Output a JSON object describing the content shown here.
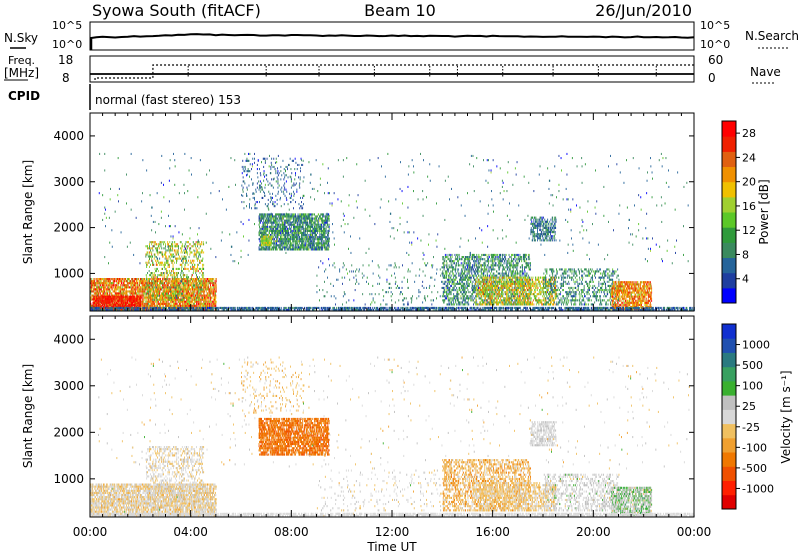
{
  "header": {
    "station": "Syowa South (fitACF)",
    "beam": "Beam 10",
    "date": "26/Jun/2010"
  },
  "top_panels": {
    "nsky_label": "N.Sky",
    "nsearch_label": "N.Search",
    "nsky_ticks": [
      "10^5",
      "10^0"
    ],
    "nsearch_ticks": [
      "10^5",
      "10^0"
    ],
    "freq_label": "Freq.",
    "freq_unit": "[MHz]",
    "freq_ticks": [
      "18",
      "8"
    ],
    "nave_label": "Nave",
    "nave_ticks": [
      "60",
      "0"
    ],
    "cpid_label": "CPID",
    "cpid_text": "normal (fast stereo) 153"
  },
  "time_axis": {
    "label": "Time UT",
    "ticks": [
      "00:00",
      "04:00",
      "08:00",
      "12:00",
      "16:00",
      "20:00",
      "00:00"
    ]
  },
  "chart_data": [
    {
      "type": "heatmap",
      "name": "power-panel",
      "ylabel": "Slant Range [km]",
      "yticks": [
        "1000",
        "2000",
        "3000",
        "4000"
      ],
      "ylim": [
        180,
        4500
      ],
      "xlim_hours": [
        0,
        24
      ],
      "colorbar": {
        "label": "Power [dB]",
        "ticks": [
          "4",
          "8",
          "12",
          "16",
          "20",
          "24",
          "28"
        ],
        "range": [
          0,
          30
        ],
        "colors": [
          "#0000ff",
          "#1e3ea0",
          "#25649a",
          "#3a8a5e",
          "#2f9a3b",
          "#5cc828",
          "#a0d030",
          "#f0c000",
          "#f09000",
          "#e06010",
          "#f02000",
          "#ff0000"
        ]
      },
      "clusters": [
        {
          "t": [
            0.0,
            5.0
          ],
          "r": [
            180,
            900
          ],
          "value": 22,
          "spread": 8,
          "density": 0.55
        },
        {
          "t": [
            2.2,
            4.5
          ],
          "r": [
            400,
            1700
          ],
          "value": 16,
          "spread": 8,
          "density": 0.2
        },
        {
          "t": [
            0.1,
            2.0
          ],
          "r": [
            200,
            500
          ],
          "value": 27,
          "spread": 4,
          "density": 0.6
        },
        {
          "t": [
            6.7,
            9.5
          ],
          "r": [
            1500,
            2300
          ],
          "value": 9,
          "spread": 6,
          "density": 0.5
        },
        {
          "t": [
            6.8,
            7.2
          ],
          "r": [
            1600,
            1800
          ],
          "value": 16,
          "spread": 3,
          "density": 0.6
        },
        {
          "t": [
            6.0,
            8.5
          ],
          "r": [
            2400,
            3500
          ],
          "value": 6,
          "spread": 4,
          "density": 0.06
        },
        {
          "t": [
            14.0,
            17.5
          ],
          "r": [
            300,
            1400
          ],
          "value": 9,
          "spread": 6,
          "density": 0.28
        },
        {
          "t": [
            15.3,
            18.5
          ],
          "r": [
            300,
            900
          ],
          "value": 18,
          "spread": 6,
          "density": 0.3
        },
        {
          "t": [
            17.5,
            18.5
          ],
          "r": [
            1700,
            2200
          ],
          "value": 7,
          "spread": 4,
          "density": 0.35
        },
        {
          "t": [
            18.0,
            21.0
          ],
          "r": [
            300,
            1100
          ],
          "value": 9,
          "spread": 5,
          "density": 0.2
        },
        {
          "t": [
            20.7,
            22.3
          ],
          "r": [
            200,
            800
          ],
          "value": 22,
          "spread": 6,
          "density": 0.5
        },
        {
          "t": [
            0.0,
            24.0
          ],
          "r": [
            180,
            260
          ],
          "value": 6,
          "spread": 3,
          "density": 0.5
        },
        {
          "t": [
            9.0,
            14.0
          ],
          "r": [
            300,
            1200
          ],
          "value": 8,
          "spread": 4,
          "density": 0.03
        },
        {
          "t": [
            0.3,
            23.8
          ],
          "r": [
            1200,
            3600
          ],
          "value": 8,
          "spread": 6,
          "density": 0.008
        }
      ]
    },
    {
      "type": "heatmap",
      "name": "velocity-panel",
      "ylabel": "Slant Range [km]",
      "yticks": [
        "1000",
        "2000",
        "3000",
        "4000"
      ],
      "ylim": [
        180,
        4500
      ],
      "xlim_hours": [
        0,
        24
      ],
      "colorbar": {
        "label": "Velocity [m s⁻¹]",
        "ticks": [
          "1000",
          "500",
          "100",
          "25",
          "-25",
          "-100",
          "-500",
          "-1000"
        ],
        "range": [
          -1200,
          1200
        ],
        "colors": [
          "#e00000",
          "#ff2000",
          "#f05000",
          "#f07800",
          "#f0a030",
          "#f0c060",
          "#d8d8d8",
          "#c0c0c0",
          "#3ab030",
          "#38a060",
          "#2a7a80",
          "#2050b0",
          "#1030d0"
        ]
      },
      "clusters": [
        {
          "t": [
            0.0,
            5.0
          ],
          "r": [
            180,
            900
          ],
          "value": -80,
          "spread": 250,
          "density": 0.5
        },
        {
          "t": [
            2.2,
            4.5
          ],
          "r": [
            400,
            1700
          ],
          "value": -40,
          "spread": 200,
          "density": 0.2
        },
        {
          "t": [
            6.7,
            9.5
          ],
          "r": [
            1500,
            2300
          ],
          "value": -600,
          "spread": 120,
          "density": 0.5
        },
        {
          "t": [
            6.0,
            8.5
          ],
          "r": [
            2400,
            3500
          ],
          "value": -200,
          "spread": 200,
          "density": 0.05
        },
        {
          "t": [
            14.0,
            17.5
          ],
          "r": [
            300,
            1400
          ],
          "value": -250,
          "spread": 300,
          "density": 0.3
        },
        {
          "t": [
            15.3,
            18.5
          ],
          "r": [
            300,
            900
          ],
          "value": -150,
          "spread": 200,
          "density": 0.3
        },
        {
          "t": [
            17.5,
            18.5
          ],
          "r": [
            1700,
            2200
          ],
          "value": 80,
          "spread": 80,
          "density": 0.35
        },
        {
          "t": [
            18.0,
            21.0
          ],
          "r": [
            300,
            1100
          ],
          "value": 100,
          "spread": 200,
          "density": 0.2
        },
        {
          "t": [
            20.7,
            22.3
          ],
          "r": [
            200,
            800
          ],
          "value": 200,
          "spread": 300,
          "density": 0.5
        },
        {
          "t": [
            0.0,
            24.0
          ],
          "r": [
            180,
            260
          ],
          "value": 0,
          "spread": 60,
          "density": 0.5
        },
        {
          "t": [
            9.0,
            14.0
          ],
          "r": [
            300,
            1200
          ],
          "value": 0,
          "spread": 200,
          "density": 0.03
        },
        {
          "t": [
            0.3,
            23.8
          ],
          "r": [
            1200,
            3600
          ],
          "value": 0,
          "spread": 300,
          "density": 0.008
        }
      ]
    }
  ]
}
